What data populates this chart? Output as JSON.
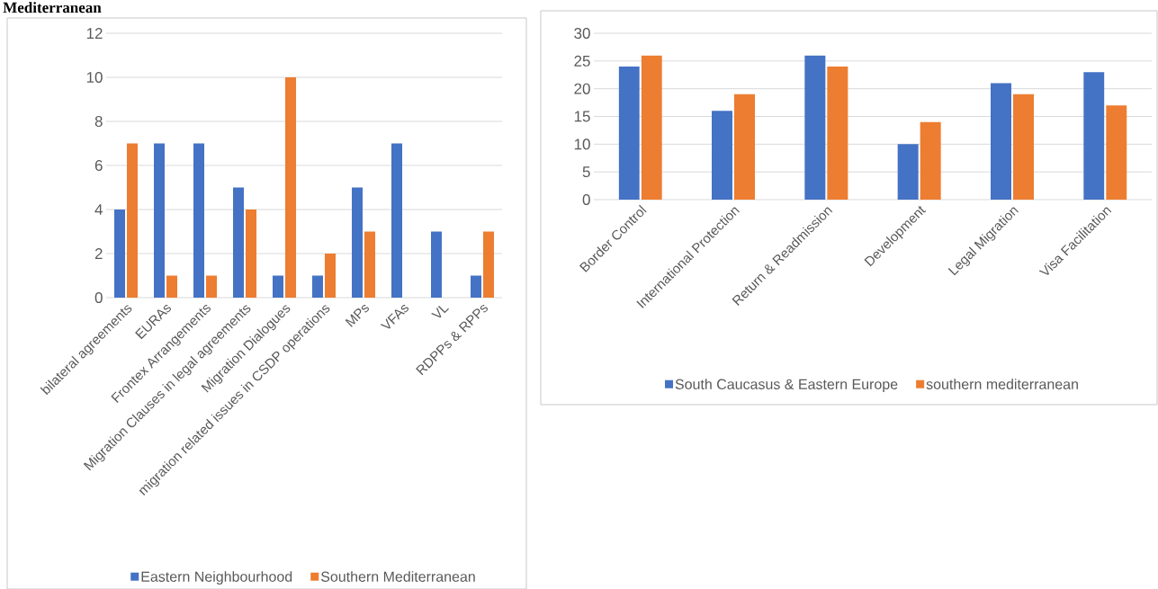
{
  "chart_data": [
    {
      "type": "bar",
      "annotations": [
        "Mediterranean"
      ],
      "categories": [
        "bilateral agreements",
        "EURAs",
        "Frontex Arrangements",
        "Migration Clauses in legal agreements",
        "Migration Dialogues",
        "migration related issues in CSDP operations",
        "MPs",
        "VFAs",
        "VL",
        "RDPPs & RPPs"
      ],
      "series": [
        {
          "name": "Eastern Neighbourhood",
          "color": "#4472c4",
          "values": [
            4,
            7,
            7,
            5,
            1,
            1,
            5,
            7,
            3,
            1
          ]
        },
        {
          "name": "Southern Mediterranean",
          "color": "#ed7d31",
          "values": [
            7,
            1,
            1,
            4,
            10,
            2,
            3,
            0,
            0,
            3
          ]
        }
      ],
      "ylim": [
        0,
        12
      ],
      "yticks": [
        0,
        2,
        4,
        6,
        8,
        10,
        12
      ],
      "grid": "y",
      "legend": "bottom"
    },
    {
      "type": "bar",
      "categories": [
        "Border Control",
        "International Protection",
        "Return & Readmission",
        "Development",
        "Legal Migration",
        "Visa Facilitation"
      ],
      "series": [
        {
          "name": "South Caucasus & Eastern Europe",
          "color": "#4472c4",
          "values": [
            24,
            16,
            26,
            10,
            21,
            23
          ]
        },
        {
          "name": "southern mediterranean",
          "color": "#ed7d31",
          "values": [
            26,
            19,
            24,
            14,
            19,
            17
          ]
        }
      ],
      "ylim": [
        0,
        30
      ],
      "yticks": [
        0,
        5,
        10,
        15,
        20,
        25,
        30
      ],
      "grid": "y",
      "legend": "bottom"
    }
  ]
}
